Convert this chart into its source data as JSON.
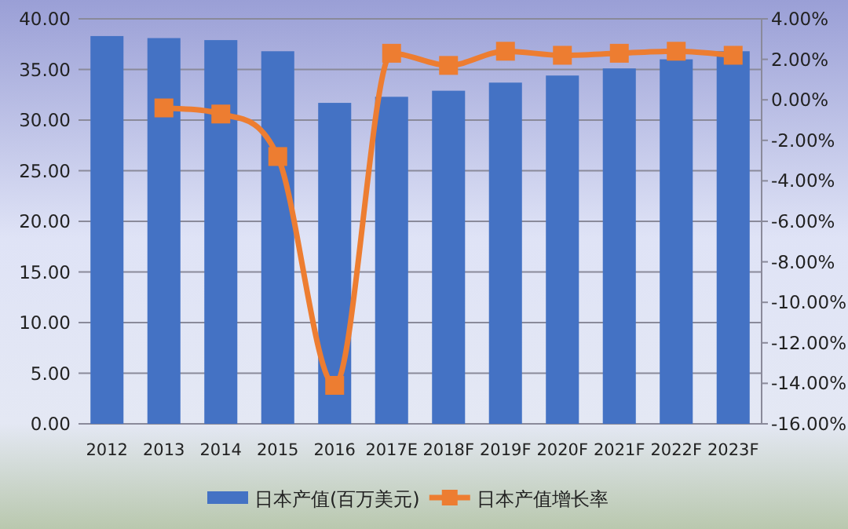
{
  "chart_data": {
    "type": "bar",
    "categories": [
      "2012",
      "2013",
      "2014",
      "2015",
      "2016",
      "2017E",
      "2018F",
      "2019F",
      "2020F",
      "2021F",
      "2022F",
      "2023F"
    ],
    "series": [
      {
        "name": "日本产值(百万美元)",
        "color": "#4472c4",
        "values": [
          38.3,
          38.1,
          37.9,
          36.8,
          31.7,
          32.3,
          32.9,
          33.7,
          34.4,
          35.1,
          36.0,
          36.8
        ]
      },
      {
        "name": "日本产值增长率",
        "type": "line",
        "axis": "y2",
        "color": "#ed7d31",
        "marker": "square",
        "values": [
          null,
          -0.4,
          -0.7,
          -2.8,
          -14.1,
          2.3,
          1.7,
          2.4,
          2.2,
          2.3,
          2.4,
          2.2
        ]
      }
    ],
    "ylim": [
      0,
      40
    ],
    "yticks": [
      {
        "value": 0,
        "label": "0.00"
      },
      {
        "value": 5,
        "label": "5.00"
      },
      {
        "value": 10,
        "label": "10.00"
      },
      {
        "value": 15,
        "label": "15.00"
      },
      {
        "value": 20,
        "label": "20.00"
      },
      {
        "value": 25,
        "label": "25.00"
      },
      {
        "value": 30,
        "label": "30.00"
      },
      {
        "value": 35,
        "label": "35.00"
      },
      {
        "value": 40,
        "label": "40.00"
      }
    ],
    "y2lim": [
      -16,
      4
    ],
    "y2ticks": [
      {
        "value": -16,
        "label": "-16.00%"
      },
      {
        "value": -14,
        "label": "-14.00%"
      },
      {
        "value": -12,
        "label": "-12.00%"
      },
      {
        "value": -10,
        "label": "-10.00%"
      },
      {
        "value": -8,
        "label": "-8.00%"
      },
      {
        "value": -6,
        "label": "-6.00%"
      },
      {
        "value": -4,
        "label": "-4.00%"
      },
      {
        "value": -2,
        "label": "-2.00%"
      },
      {
        "value": 0,
        "label": "0.00%"
      },
      {
        "value": 2,
        "label": "2.00%"
      },
      {
        "value": 4,
        "label": "4.00%"
      }
    ],
    "grid": "y",
    "legend": "bottom"
  }
}
